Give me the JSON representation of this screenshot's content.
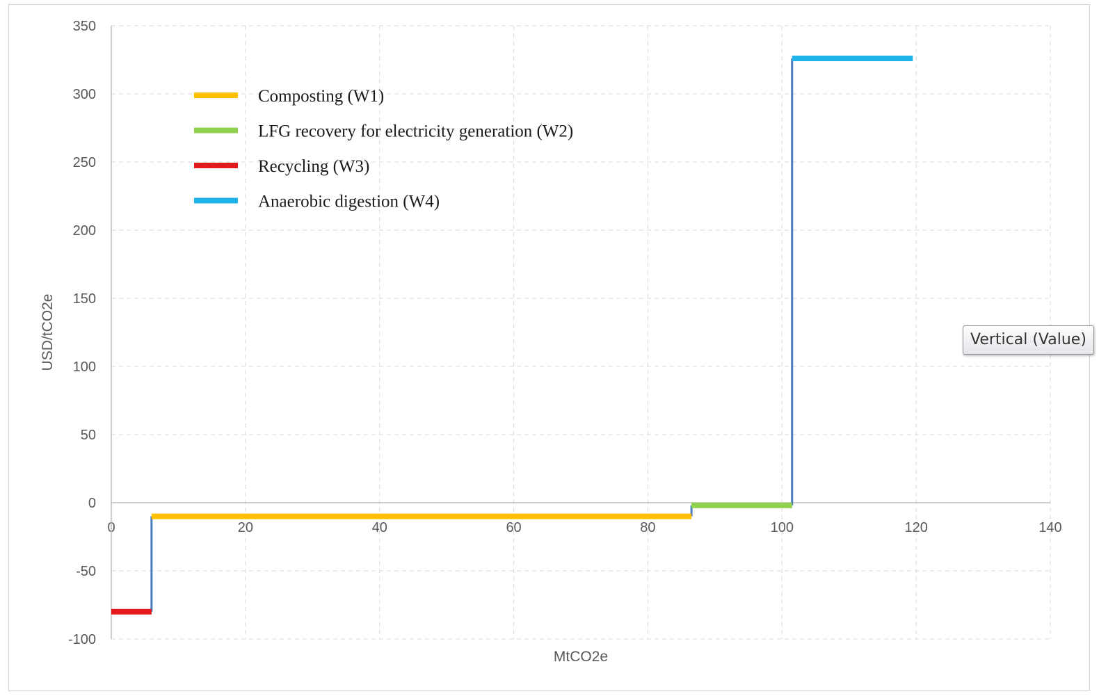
{
  "chart_data": {
    "type": "line",
    "subtype": "step",
    "title": "",
    "xlabel": "MtCO2e",
    "ylabel": "USD/tCO2e",
    "xlim": [
      0,
      140
    ],
    "ylim": [
      -100,
      350
    ],
    "x_ticks": [
      0,
      20,
      40,
      60,
      80,
      100,
      120,
      140
    ],
    "y_ticks": [
      350,
      300,
      250,
      200,
      150,
      100,
      50,
      0,
      -50,
      -100
    ],
    "grid": true,
    "legend_position": "top-left",
    "connector_color": "#4a7ebb",
    "series": [
      {
        "name": "Composting (W1)",
        "color": "#ffc000",
        "x_start": 6,
        "x_end": 86.5,
        "value": -10
      },
      {
        "name": "LFG  recovery for electricity generation (W2)",
        "color": "#92d050",
        "x_start": 86.5,
        "x_end": 101.5,
        "value": -2
      },
      {
        "name": "Recycling (W3)",
        "color": "#e31a1c",
        "x_start": 0,
        "x_end": 6,
        "value": -80
      },
      {
        "name": "Anaerobic digestion (W4)",
        "color": "#1fb4e9",
        "x_start": 101.5,
        "x_end": 119.5,
        "value": 326
      }
    ],
    "step_order": [
      2,
      0,
      1,
      3
    ]
  },
  "tooltip": {
    "text": "Vertical (Value)"
  }
}
